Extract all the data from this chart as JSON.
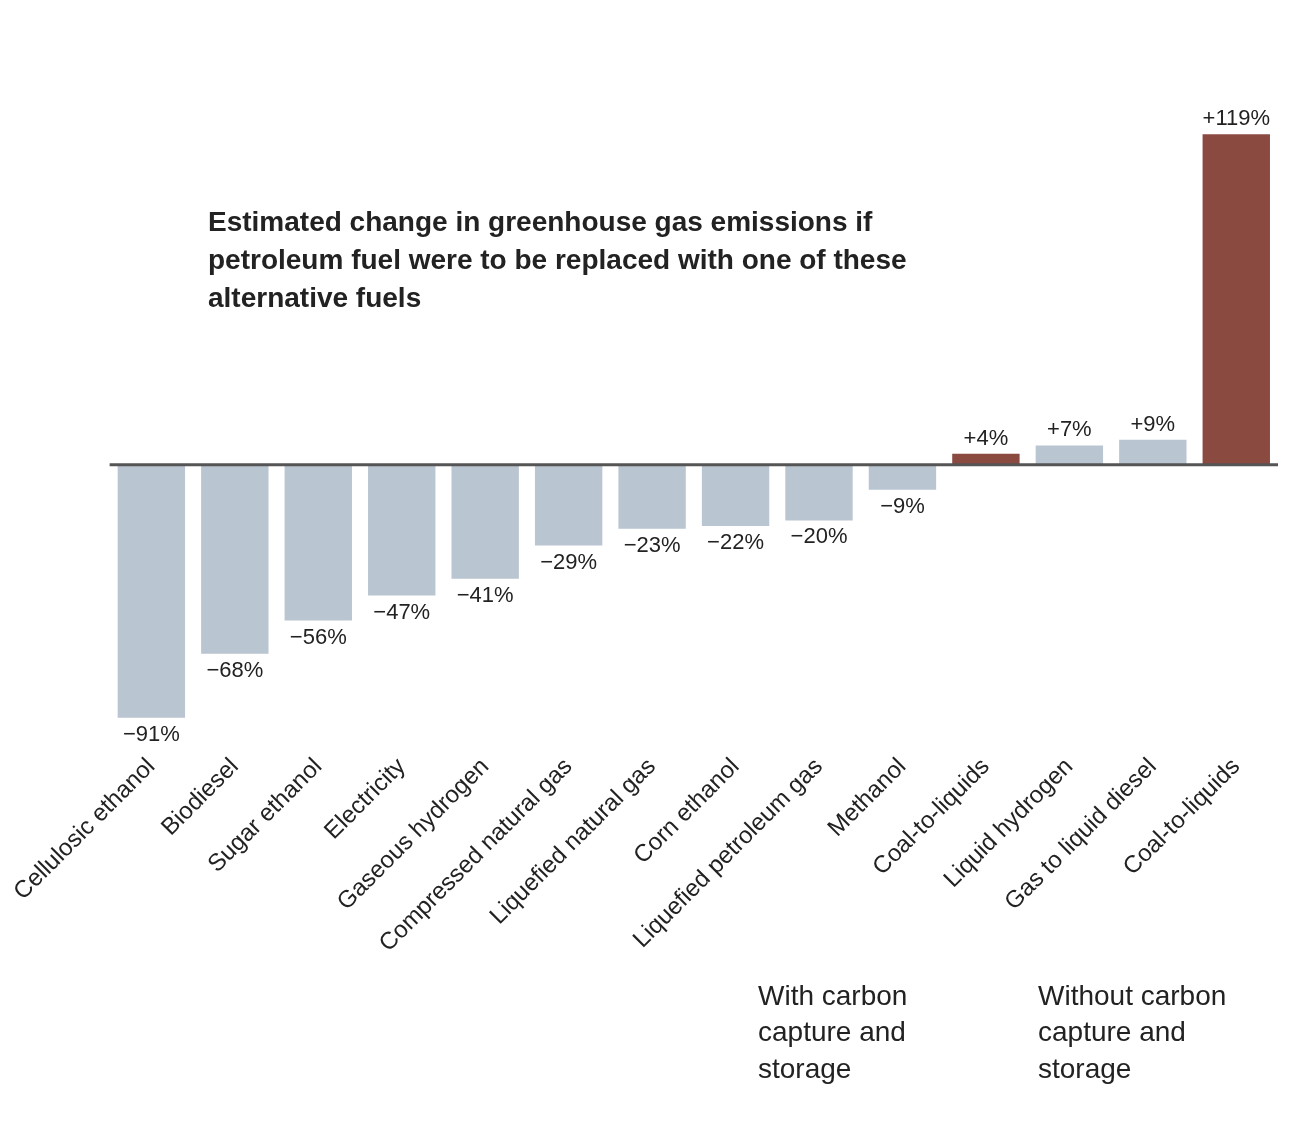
{
  "chart_data": {
    "type": "bar",
    "title": "Estimated change in greenhouse gas emissions if petroleum fuel were to be replaced with one of these alternative fuels",
    "categories": [
      "Cellulosic ethanol",
      "Biodiesel",
      "Sugar ethanol",
      "Electricity",
      "Gaseous hydrogen",
      "Compressed natural gas",
      "Liquefied natural gas",
      "Corn ethanol",
      "Liquefied petroleum gas",
      "Methanol",
      "Coal-to-liquids",
      "Liquid hydrogen",
      "Gas to liquid diesel",
      "Coal-to-liquids"
    ],
    "values": [
      -91,
      -68,
      -56,
      -47,
      -41,
      -29,
      -23,
      -22,
      -20,
      -9,
      4,
      7,
      9,
      119
    ],
    "colors": [
      "#b9c5d0",
      "#b9c5d0",
      "#b9c5d0",
      "#b9c5d0",
      "#b9c5d0",
      "#b9c5d0",
      "#b9c5d0",
      "#b9c5d0",
      "#b9c5d0",
      "#b9c5d0",
      "#8a4a40",
      "#b9c5d0",
      "#b9c5d0",
      "#8a4a40"
    ],
    "value_labels": [
      "−91%",
      "−68%",
      "−56%",
      "−47%",
      "−41%",
      "−29%",
      "−23%",
      "−22%",
      "−20%",
      "−9%",
      "+4%",
      "+7%",
      "+9%",
      "+119%"
    ],
    "annotations": [
      "With carbon capture and storage",
      "Without carbon capture and storage"
    ],
    "grid": false,
    "legend": false
  }
}
